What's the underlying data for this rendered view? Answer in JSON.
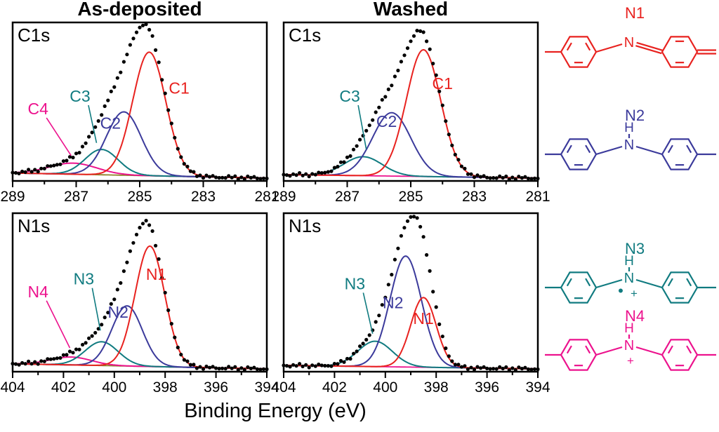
{
  "figure": {
    "column_titles": [
      "As-deposited",
      "Washed"
    ],
    "x_axis_label": "Binding Energy (eV)"
  },
  "colors": {
    "c1": "#e8221f",
    "c2": "#3b3a9b",
    "c3": "#107b80",
    "c4": "#ec128d",
    "baseline_olive": "#8c8126",
    "data_points": "#000000",
    "axis": "#000000"
  },
  "chart_data": [
    {
      "type": "line",
      "id": "c1s-as-deposited",
      "panel_title": "C1s",
      "column": "As-deposited",
      "x_unit": "eV",
      "x_range": [
        289,
        281
      ],
      "x_ticks": [
        289,
        287,
        285,
        283,
        281
      ],
      "x_minor_step": 1,
      "xlabel": "Binding Energy (eV)",
      "measured_style": "dots",
      "peaks": [
        {
          "label": "C1",
          "colorKey": "c1",
          "center": 284.7,
          "sigma": 0.52,
          "amplitude": 0.78
        },
        {
          "label": "C2",
          "colorKey": "c2",
          "center": 285.5,
          "sigma": 0.55,
          "amplitude": 0.4
        },
        {
          "label": "C3",
          "colorKey": "c3",
          "center": 286.2,
          "sigma": 0.52,
          "amplitude": 0.16
        },
        {
          "label": "C4",
          "colorKey": "c4",
          "center": 287.1,
          "sigma": 0.75,
          "amplitude": 0.07
        }
      ],
      "baseline": {
        "colorKey": "baseline_olive",
        "left": 0.05,
        "right": 0.018
      },
      "annotations": [
        {
          "text": "C1",
          "colorKey": "c1",
          "x": 0.655,
          "y": 0.45
        },
        {
          "text": "C2",
          "colorKey": "c2",
          "x": 0.385,
          "y": 0.67
        },
        {
          "text": "C3",
          "colorKey": "c3",
          "x": 0.265,
          "y": 0.5,
          "line_to": [
            0.33,
            0.76
          ]
        },
        {
          "text": "C4",
          "colorKey": "c4",
          "x": 0.1,
          "y": 0.58,
          "line_to": [
            0.23,
            0.84
          ]
        }
      ]
    },
    {
      "type": "line",
      "id": "c1s-washed",
      "panel_title": "C1s",
      "column": "Washed",
      "x_unit": "eV",
      "x_range": [
        289,
        281
      ],
      "x_ticks": [
        289,
        287,
        285,
        283,
        281
      ],
      "x_minor_step": 1,
      "xlabel": "Binding Energy (eV)",
      "measured_style": "dots",
      "peaks": [
        {
          "label": "C1",
          "colorKey": "c1",
          "center": 284.6,
          "sigma": 0.54,
          "amplitude": 0.8
        },
        {
          "label": "C2",
          "colorKey": "c2",
          "center": 285.6,
          "sigma": 0.6,
          "amplitude": 0.4
        },
        {
          "label": "C3",
          "colorKey": "c3",
          "center": 286.5,
          "sigma": 0.6,
          "amplitude": 0.12
        }
      ],
      "baseline": {
        "colorKey": "c4",
        "left": 0.04,
        "right": 0.018
      },
      "annotations": [
        {
          "text": "C1",
          "colorKey": "c1",
          "x": 0.625,
          "y": 0.42
        },
        {
          "text": "C2",
          "colorKey": "c2",
          "x": 0.405,
          "y": 0.66
        },
        {
          "text": "C3",
          "colorKey": "c3",
          "x": 0.26,
          "y": 0.5,
          "line_to": [
            0.325,
            0.8
          ]
        }
      ]
    },
    {
      "type": "line",
      "id": "n1s-as-deposited",
      "panel_title": "N1s",
      "column": "As-deposited",
      "x_unit": "eV",
      "x_range": [
        404,
        394
      ],
      "x_ticks": [
        404,
        402,
        400,
        398,
        396,
        394
      ],
      "x_minor_step": 1,
      "xlabel": "Binding Energy (eV)",
      "measured_style": "dots",
      "peaks": [
        {
          "label": "N1",
          "colorKey": "c1",
          "center": 398.6,
          "sigma": 0.58,
          "amplitude": 0.76
        },
        {
          "label": "N2",
          "colorKey": "c2",
          "center": 399.5,
          "sigma": 0.6,
          "amplitude": 0.38
        },
        {
          "label": "N3",
          "colorKey": "c3",
          "center": 400.5,
          "sigma": 0.65,
          "amplitude": 0.15
        },
        {
          "label": "N4",
          "colorKey": "c4",
          "center": 401.7,
          "sigma": 0.8,
          "amplitude": 0.05
        }
      ],
      "baseline": {
        "colorKey": "baseline_olive",
        "left": 0.05,
        "right": 0.018
      },
      "annotations": [
        {
          "text": "N1",
          "colorKey": "c1",
          "x": 0.565,
          "y": 0.42
        },
        {
          "text": "N2",
          "colorKey": "c2",
          "x": 0.415,
          "y": 0.66
        },
        {
          "text": "N3",
          "colorKey": "c3",
          "x": 0.28,
          "y": 0.45,
          "line_to": [
            0.345,
            0.74
          ]
        },
        {
          "text": "N4",
          "colorKey": "c4",
          "x": 0.1,
          "y": 0.53,
          "line_to": [
            0.225,
            0.85
          ]
        }
      ]
    },
    {
      "type": "line",
      "id": "n1s-washed",
      "panel_title": "N1s",
      "column": "Washed",
      "x_unit": "eV",
      "x_range": [
        404,
        394
      ],
      "x_ticks": [
        404,
        402,
        400,
        398,
        396,
        394
      ],
      "x_minor_step": 1,
      "xlabel": "Binding Energy (eV)",
      "measured_style": "dots",
      "peaks": [
        {
          "label": "N1",
          "colorKey": "c1",
          "center": 398.5,
          "sigma": 0.5,
          "amplitude": 0.44
        },
        {
          "label": "N2",
          "colorKey": "c2",
          "center": 399.2,
          "sigma": 0.62,
          "amplitude": 0.7
        },
        {
          "label": "N3",
          "colorKey": "c3",
          "center": 400.4,
          "sigma": 0.68,
          "amplitude": 0.16
        }
      ],
      "baseline": {
        "colorKey": "c4",
        "left": 0.04,
        "right": 0.018
      },
      "annotations": [
        {
          "text": "N1",
          "colorKey": "c1",
          "x": 0.55,
          "y": 0.7
        },
        {
          "text": "N2",
          "colorKey": "c2",
          "x": 0.43,
          "y": 0.6
        },
        {
          "text": "N3",
          "colorKey": "c3",
          "x": 0.28,
          "y": 0.48,
          "line_to": [
            0.35,
            0.76
          ]
        }
      ]
    }
  ],
  "structures": [
    {
      "label": "N1",
      "colorKey": "c1",
      "variant": "imine",
      "atom": "N",
      "hydrogen": "",
      "charge": ""
    },
    {
      "label": "N2",
      "colorKey": "c2",
      "variant": "amine",
      "atom": "N",
      "hydrogen": "H",
      "charge": ""
    },
    {
      "label": "N3",
      "colorKey": "c3",
      "variant": "amine",
      "atom": "N",
      "hydrogen": "H",
      "charge": "•+"
    },
    {
      "label": "N4",
      "colorKey": "c4",
      "variant": "amine",
      "atom": "N",
      "hydrogen": "H",
      "charge": "+"
    }
  ]
}
